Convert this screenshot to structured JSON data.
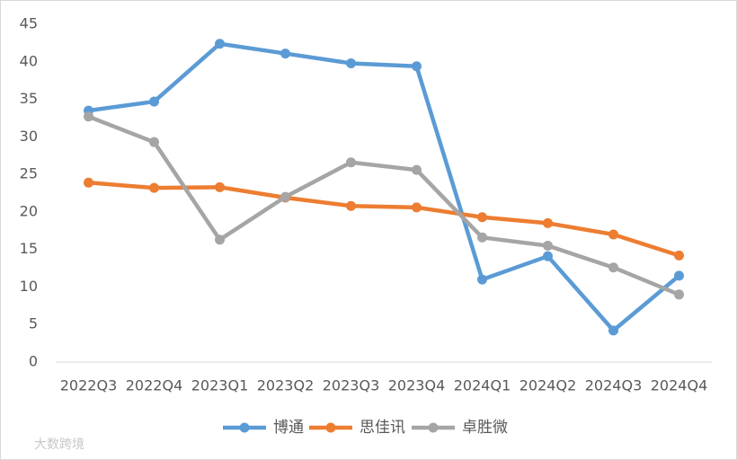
{
  "chart_data": {
    "type": "line",
    "categories": [
      "2022Q3",
      "2022Q4",
      "2023Q1",
      "2023Q2",
      "2023Q3",
      "2023Q4",
      "2024Q1",
      "2024Q2",
      "2024Q3",
      "2024Q4"
    ],
    "series": [
      {
        "name": "博通",
        "color": "#5b9bd5",
        "values": [
          33.5,
          34.7,
          42.4,
          41.1,
          39.8,
          39.4,
          11,
          14.1,
          4.2,
          11.5
        ]
      },
      {
        "name": "思佳讯",
        "color": "#ed7d31",
        "values": [
          23.9,
          23.2,
          23.3,
          21.9,
          20.8,
          20.6,
          19.3,
          18.5,
          17,
          14.2
        ]
      },
      {
        "name": "卓胜微",
        "color": "#a5a5a5",
        "values": [
          32.7,
          29.3,
          16.3,
          22,
          26.6,
          25.6,
          16.6,
          15.5,
          12.6,
          9
        ]
      }
    ],
    "ylim": [
      0,
      45
    ],
    "yticks": [
      0,
      5,
      10,
      15,
      20,
      25,
      30,
      35,
      40,
      45
    ],
    "grid": false,
    "legend": "bottom",
    "watermark": "大数跨境"
  }
}
